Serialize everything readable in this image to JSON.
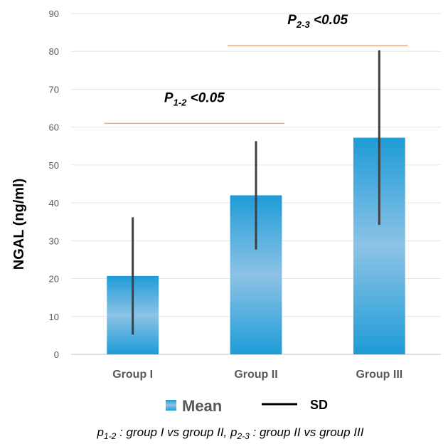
{
  "chart_data": {
    "type": "bar",
    "categories": [
      "Group I",
      "Group II",
      "Group III"
    ],
    "series": [
      {
        "name": "Mean",
        "values": [
          20.7,
          42.0,
          57.2
        ]
      }
    ],
    "error_bars": {
      "name": "SD",
      "lower": [
        5.2,
        27.7,
        34.2
      ],
      "upper": [
        36.2,
        56.3,
        80.3
      ]
    },
    "ylabel": "NGAL (ng/ml)",
    "xlabel": "",
    "ylim": [
      0,
      90
    ],
    "yticks": [
      0,
      10,
      20,
      30,
      40,
      50,
      60,
      70,
      80,
      90
    ],
    "grid": true,
    "legend_position": "bottom",
    "annotations": [
      {
        "prefix": "P",
        "sub": "1-2",
        "text": " <0.05",
        "from": 0,
        "to": 1,
        "y": 61
      },
      {
        "prefix": "P",
        "sub": "2-3",
        "text": " <0.05",
        "from": 1,
        "to": 2,
        "y": 81.5
      }
    ],
    "footnote": {
      "p12": "p",
      "p12_sub": "1-2",
      "p12_text": " : group I vs group II, ",
      "p23": "p",
      "p23_sub": "2-3",
      "p23_text": " : group II vs group III"
    },
    "colors": {
      "bar_edge": "#1E9BD7",
      "bar_center": "#8DC3E6",
      "error_bar": "#404040",
      "significance_line": "#F4A582",
      "grid": "#E6E6E6"
    }
  }
}
